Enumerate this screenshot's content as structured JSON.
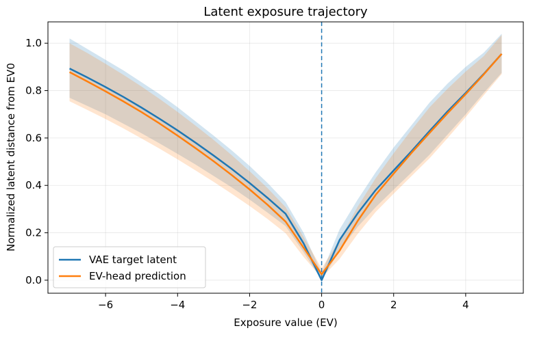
{
  "chart_data": {
    "type": "line",
    "title": "Latent exposure trajectory",
    "xlabel": "Exposure value (EV)",
    "ylabel": "Normalized latent distance from EV0",
    "xlim": [
      -7.6,
      5.6
    ],
    "ylim": [
      -0.055,
      1.09
    ],
    "xticks": [
      -6,
      -4,
      -2,
      0,
      2,
      4
    ],
    "xtick_labels": [
      "−6",
      "−4",
      "−2",
      "0",
      "2",
      "4"
    ],
    "yticks": [
      0.0,
      0.2,
      0.4,
      0.6,
      0.8,
      1.0
    ],
    "ytick_labels": [
      "0.0",
      "0.2",
      "0.4",
      "0.6",
      "0.8",
      "1.0"
    ],
    "grid": true,
    "legend_position": "lower-left",
    "vline": {
      "x": 0,
      "style": "dashed",
      "color": "#1f77b4"
    },
    "x": [
      -7,
      -6.5,
      -6,
      -5.5,
      -5,
      -4.5,
      -4,
      -3.5,
      -3,
      -2.5,
      -2,
      -1.5,
      -1,
      -0.5,
      0,
      0.5,
      1,
      1.5,
      2,
      2.5,
      3,
      3.5,
      4,
      4.5,
      5
    ],
    "series": [
      {
        "name": "VAE target latent",
        "color": "#1f77b4",
        "values": [
          0.893,
          0.855,
          0.815,
          0.773,
          0.728,
          0.681,
          0.632,
          0.58,
          0.526,
          0.47,
          0.41,
          0.347,
          0.28,
          0.155,
          0.0,
          0.17,
          0.282,
          0.38,
          0.463,
          0.545,
          0.63,
          0.713,
          0.79,
          0.87,
          0.955
        ],
        "band_upper": [
          1.02,
          0.975,
          0.93,
          0.885,
          0.835,
          0.785,
          0.73,
          0.67,
          0.61,
          0.548,
          0.482,
          0.41,
          0.33,
          0.2,
          0.03,
          0.215,
          0.34,
          0.455,
          0.56,
          0.655,
          0.75,
          0.83,
          0.9,
          0.96,
          1.04
        ],
        "band_lower": [
          0.77,
          0.735,
          0.7,
          0.66,
          0.62,
          0.577,
          0.533,
          0.488,
          0.44,
          0.392,
          0.34,
          0.285,
          0.228,
          0.118,
          0.0,
          0.125,
          0.225,
          0.308,
          0.382,
          0.455,
          0.53,
          0.615,
          0.7,
          0.79,
          0.875
        ]
      },
      {
        "name": "EV-head prediction",
        "color": "#ff7f0e",
        "values": [
          0.878,
          0.838,
          0.797,
          0.754,
          0.709,
          0.661,
          0.61,
          0.557,
          0.502,
          0.444,
          0.383,
          0.318,
          0.247,
          0.137,
          0.025,
          0.125,
          0.25,
          0.36,
          0.45,
          0.538,
          0.622,
          0.705,
          0.785,
          0.868,
          0.955
        ],
        "band_upper": [
          1.0,
          0.958,
          0.913,
          0.866,
          0.817,
          0.765,
          0.71,
          0.652,
          0.592,
          0.528,
          0.46,
          0.388,
          0.308,
          0.182,
          0.05,
          0.17,
          0.31,
          0.43,
          0.535,
          0.635,
          0.73,
          0.808,
          0.88,
          0.945,
          1.035
        ],
        "band_lower": [
          0.755,
          0.718,
          0.68,
          0.64,
          0.598,
          0.555,
          0.51,
          0.463,
          0.415,
          0.365,
          0.313,
          0.258,
          0.198,
          0.098,
          0.01,
          0.09,
          0.195,
          0.288,
          0.365,
          0.44,
          0.515,
          0.6,
          0.688,
          0.78,
          0.87
        ]
      }
    ]
  }
}
